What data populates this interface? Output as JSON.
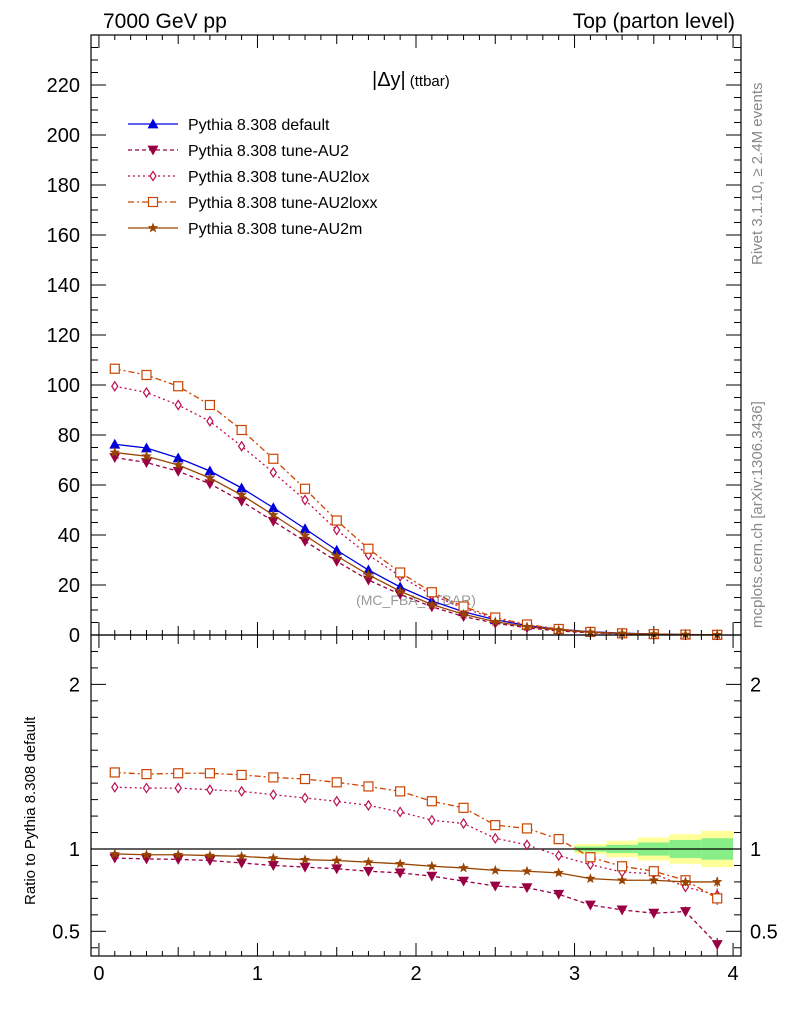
{
  "header": {
    "left": "7000 GeV pp",
    "right": "Top (parton level)"
  },
  "side": {
    "rivet": "Rivet 3.1.10, ≥ 2.4M events",
    "mcplots": "mcplots.cern.ch [arXiv:1306.3436]"
  },
  "plot_title_main": "|Δy|",
  "plot_title_sub": "(ttbar)",
  "watermark": "(MC_FBA_TTBAR)",
  "ratio_ylabel": "Ratio to Pythia 8.308 default",
  "colors": {
    "default": "#0000dd",
    "AU2": "#990044",
    "AU2lox": "#bb1155",
    "AU2loxx": "#cc4400",
    "AU2m": "#994400",
    "band_inner": "#88ee88",
    "band_outer": "#ffff99"
  },
  "chart_data": [
    {
      "type": "line",
      "panel": "main",
      "xlim": [
        -0.05,
        4.05
      ],
      "ylim": [
        0,
        240
      ],
      "yticks": [
        0,
        20,
        40,
        60,
        80,
        100,
        120,
        140,
        160,
        180,
        200,
        220
      ],
      "x": [
        0.1,
        0.3,
        0.5,
        0.7,
        0.9,
        1.1,
        1.3,
        1.5,
        1.7,
        1.9,
        2.1,
        2.3,
        2.5,
        2.7,
        2.9,
        3.1,
        3.3,
        3.5,
        3.7,
        3.9
      ],
      "series": [
        {
          "key": "default",
          "name": "Pythia 8.308 default",
          "marker": "triangle-up",
          "dash": "",
          "values": [
            76.3,
            74.8,
            70.8,
            65.6,
            58.8,
            50.9,
            42.5,
            33.9,
            26.0,
            19.2,
            13.6,
            9.3,
            6.1,
            3.8,
            2.3,
            1.3,
            0.75,
            0.4,
            0.2,
            0.1
          ]
        },
        {
          "key": "AU2",
          "name": "Pythia 8.308 tune-AU2",
          "marker": "triangle-down",
          "dash": "4,3",
          "values": [
            71.0,
            69.0,
            65.5,
            60.5,
            53.5,
            45.5,
            37.5,
            29.5,
            22.0,
            16.3,
            11.3,
            7.4,
            4.7,
            2.9,
            1.6,
            0.86,
            0.47,
            0.24,
            0.12,
            0.04
          ]
        },
        {
          "key": "AU2lox",
          "name": "Pythia 8.308 tune-AU2lox",
          "marker": "diamond",
          "dash": "2,3",
          "values": [
            99.5,
            97.0,
            92.0,
            85.5,
            75.5,
            65.0,
            54.0,
            42.0,
            32.0,
            23.5,
            16.0,
            10.8,
            6.5,
            3.9,
            2.2,
            1.18,
            0.64,
            0.32,
            0.15,
            0.07
          ]
        },
        {
          "key": "AU2loxx",
          "name": "Pythia 8.308 tune-AU2loxx",
          "marker": "square-open",
          "dash": "6,3,2,3",
          "values": [
            106.5,
            104.0,
            99.5,
            92.0,
            82.0,
            70.5,
            58.5,
            45.8,
            34.5,
            25.0,
            17.1,
            11.4,
            7.0,
            4.2,
            2.4,
            1.23,
            0.66,
            0.34,
            0.16,
            0.07
          ]
        },
        {
          "key": "AU2m",
          "name": "Pythia 8.308 tune-AU2m",
          "marker": "star",
          "dash": "",
          "values": [
            73.0,
            71.5,
            68.0,
            62.8,
            56.0,
            48.0,
            39.8,
            31.6,
            24.1,
            17.5,
            12.2,
            8.3,
            5.3,
            3.3,
            2.0,
            1.08,
            0.61,
            0.33,
            0.16,
            0.08
          ]
        }
      ]
    },
    {
      "type": "line",
      "panel": "ratio",
      "ylabel": "Ratio to Pythia 8.308 default",
      "ylim": [
        0.35,
        2.3
      ],
      "yticks": [
        0.5,
        1,
        2
      ],
      "reference": 1,
      "x": [
        0.1,
        0.3,
        0.5,
        0.7,
        0.9,
        1.1,
        1.3,
        1.5,
        1.7,
        1.9,
        2.1,
        2.3,
        2.5,
        2.7,
        2.9,
        3.1,
        3.3,
        3.5,
        3.7,
        3.9
      ],
      "band": {
        "x_edges": [
          3.0,
          3.2,
          3.4,
          3.6,
          3.8,
          4.0
        ],
        "inner": [
          0.015,
          0.025,
          0.04,
          0.055,
          0.065,
          0.075
        ],
        "outer": [
          0.03,
          0.05,
          0.07,
          0.09,
          0.11,
          0.13
        ]
      },
      "series": [
        {
          "key": "AU2",
          "values": [
            0.945,
            0.94,
            0.937,
            0.93,
            0.915,
            0.9,
            0.89,
            0.88,
            0.865,
            0.855,
            0.835,
            0.805,
            0.775,
            0.765,
            0.725,
            0.66,
            0.63,
            0.61,
            0.62,
            0.42
          ],
          "err": [
            0.005,
            0.005,
            0.005,
            0.005,
            0.005,
            0.005,
            0.005,
            0.006,
            0.006,
            0.007,
            0.008,
            0.009,
            0.01,
            0.012,
            0.015,
            0.018,
            0.02,
            0.025,
            0.03,
            0.04
          ]
        },
        {
          "key": "AU2lox",
          "values": [
            1.375,
            1.37,
            1.37,
            1.36,
            1.35,
            1.33,
            1.31,
            1.29,
            1.265,
            1.225,
            1.175,
            1.155,
            1.065,
            1.025,
            0.96,
            0.905,
            0.86,
            0.85,
            0.77,
            0.72
          ],
          "err": [
            0.005,
            0.005,
            0.005,
            0.005,
            0.006,
            0.006,
            0.006,
            0.007,
            0.007,
            0.008,
            0.009,
            0.01,
            0.011,
            0.013,
            0.015,
            0.018,
            0.02,
            0.025,
            0.03,
            0.04
          ]
        },
        {
          "key": "AU2loxx",
          "values": [
            1.465,
            1.455,
            1.46,
            1.46,
            1.45,
            1.435,
            1.425,
            1.405,
            1.38,
            1.35,
            1.29,
            1.25,
            1.145,
            1.125,
            1.06,
            0.95,
            0.895,
            0.865,
            0.81,
            0.7
          ],
          "err": [
            0.005,
            0.005,
            0.005,
            0.005,
            0.006,
            0.006,
            0.006,
            0.007,
            0.007,
            0.008,
            0.009,
            0.01,
            0.011,
            0.013,
            0.015,
            0.018,
            0.02,
            0.025,
            0.03,
            0.04
          ]
        },
        {
          "key": "AU2m",
          "values": [
            0.97,
            0.965,
            0.965,
            0.96,
            0.955,
            0.945,
            0.935,
            0.93,
            0.92,
            0.91,
            0.895,
            0.885,
            0.87,
            0.865,
            0.855,
            0.82,
            0.81,
            0.81,
            0.8,
            0.8
          ],
          "err": [
            0.005,
            0.005,
            0.005,
            0.005,
            0.005,
            0.005,
            0.006,
            0.006,
            0.007,
            0.007,
            0.008,
            0.009,
            0.01,
            0.012,
            0.014,
            0.016,
            0.018,
            0.02,
            0.025,
            0.03
          ]
        }
      ]
    }
  ]
}
